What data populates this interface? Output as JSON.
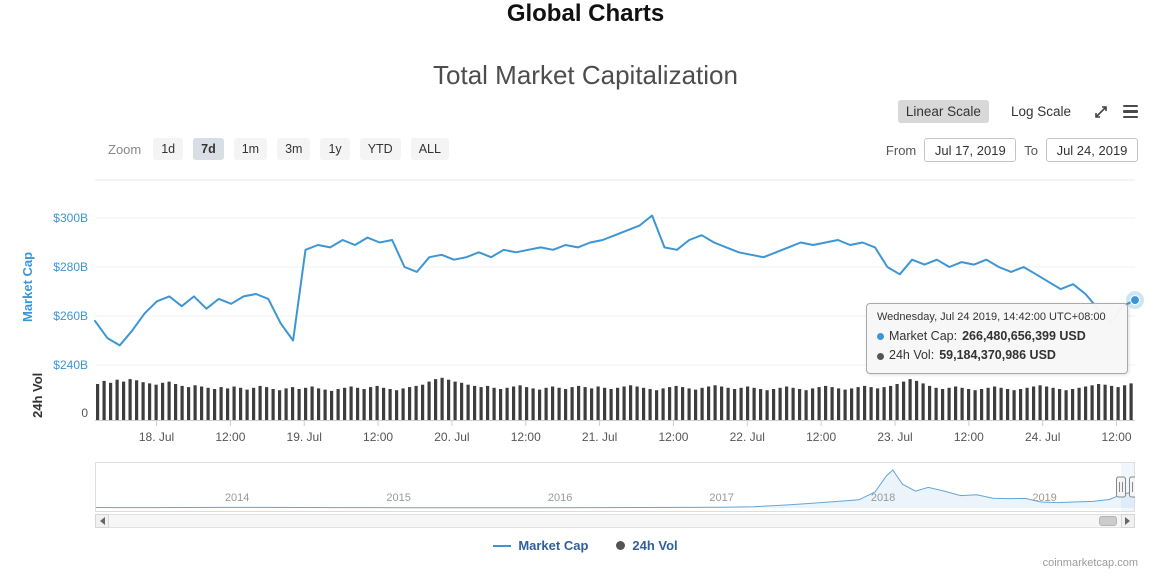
{
  "page": {
    "title": "Global Charts",
    "watermark": "coinmarketcap.com"
  },
  "chart": {
    "title": "Total Market Capitalization"
  },
  "controls": {
    "linear_scale": "Linear Scale",
    "log_scale": "Log Scale",
    "zoom_label": "Zoom",
    "zoom_buttons": [
      "1d",
      "7d",
      "1m",
      "3m",
      "1y",
      "YTD",
      "ALL"
    ],
    "zoom_selected": "7d",
    "from_label": "From",
    "from_value": "Jul 17, 2019",
    "to_label": "To",
    "to_value": "Jul 24, 2019"
  },
  "tooltip": {
    "header": "Wednesday, Jul 24 2019, 14:42:00 UTC+08:00",
    "market_cap_label": "Market Cap:",
    "market_cap_value": "266,480,656,399 USD",
    "vol_label": "24h Vol:",
    "vol_value": "59,184,370,986 USD"
  },
  "legend": {
    "market_cap": "Market Cap",
    "vol": "24h Vol"
  },
  "colors": {
    "accent": "#3d96d4",
    "volume": "#3d3d3d",
    "nav_line": "#64a5d8",
    "nav_fill": "rgba(61,150,212,0.10)",
    "axis_line": "#cccccc",
    "grid_line": "#f2f2f2"
  },
  "chart_data": {
    "type": "line",
    "title": "Total Market Capitalization",
    "y_axis_label": "Market Cap",
    "vol_axis_label": "24h Vol",
    "vol_zero_label": "0",
    "y_ticks": [
      {
        "label": "$300B",
        "value": 300
      },
      {
        "label": "$280B",
        "value": 280
      },
      {
        "label": "$260B",
        "value": 260
      },
      {
        "label": "$240B",
        "value": 240
      }
    ],
    "ylim_billions": [
      240,
      315
    ],
    "x_range": {
      "start": "Jul 17, 2019 14:00",
      "end": "Jul 24, 2019 14:42",
      "total_hours": 169
    },
    "x_tick_hours": [
      10,
      22,
      34,
      46,
      58,
      70,
      82,
      94,
      106,
      118,
      130,
      142,
      154,
      166
    ],
    "x_tick_labels": [
      "18. Jul",
      "12:00",
      "19. Jul",
      "12:00",
      "20. Jul",
      "12:00",
      "21. Jul",
      "12:00",
      "22. Jul",
      "12:00",
      "23. Jul",
      "12:00",
      "24. Jul",
      "12:00"
    ],
    "market_cap_billions": [
      258,
      251,
      248,
      254,
      261,
      266,
      268,
      264,
      268,
      263,
      267,
      265,
      268,
      269,
      267,
      257,
      250,
      287,
      289,
      288,
      291,
      289,
      292,
      290,
      291,
      280,
      278,
      284,
      285,
      283,
      284,
      286,
      284,
      287,
      286,
      287,
      288,
      287,
      289,
      288,
      290,
      291,
      293,
      295,
      297,
      301,
      288,
      287,
      291,
      293,
      290,
      288,
      286,
      285,
      284,
      286,
      288,
      290,
      289,
      290,
      291,
      289,
      290,
      288,
      280,
      277,
      283,
      281,
      283,
      280,
      282,
      281,
      283,
      280,
      278,
      280,
      277,
      274,
      271,
      273,
      269,
      263,
      257,
      264,
      266.5
    ],
    "volume_billions": [
      58,
      63,
      60,
      65,
      62,
      66,
      64,
      61,
      59,
      57,
      60,
      62,
      58,
      55,
      53,
      56,
      54,
      52,
      50,
      53,
      51,
      54,
      52,
      49,
      52,
      55,
      53,
      50,
      48,
      51,
      53,
      50,
      52,
      54,
      51,
      49,
      47,
      50,
      52,
      54,
      52,
      50,
      53,
      55,
      52,
      50,
      48,
      51,
      53,
      55,
      57,
      62,
      66,
      68,
      65,
      62,
      60,
      57,
      55,
      53,
      55,
      52,
      50,
      52,
      54,
      56,
      53,
      51,
      49,
      52,
      54,
      52,
      50,
      53,
      55,
      53,
      51,
      54,
      52,
      50,
      52,
      54,
      56,
      54,
      52,
      50,
      48,
      51,
      53,
      55,
      53,
      51,
      49,
      52,
      54,
      56,
      54,
      52,
      50,
      52,
      54,
      52,
      50,
      48,
      50,
      52,
      54,
      52,
      50,
      48,
      51,
      53,
      55,
      53,
      51,
      49,
      51,
      53,
      55,
      53,
      51,
      53,
      55,
      58,
      62,
      66,
      63,
      59,
      55,
      52,
      50,
      52,
      54,
      52,
      50,
      48,
      50,
      52,
      54,
      52,
      50,
      48,
      50,
      52,
      54,
      56,
      54,
      52,
      50,
      48,
      50,
      52,
      54,
      56,
      58,
      57,
      55,
      53,
      56,
      59
    ],
    "last_point": {
      "market_cap_usd": 266480656399,
      "vol_usd": 59184370986
    },
    "navigator": {
      "x_years": [
        2013.12,
        2013.4,
        2013.7,
        2013.95,
        2014.1,
        2014.4,
        2014.7,
        2015.0,
        2015.3,
        2015.6,
        2015.9,
        2016.2,
        2016.5,
        2016.8,
        2017.0,
        2017.2,
        2017.4,
        2017.55,
        2017.7,
        2017.85,
        2017.95,
        2018.02,
        2018.06,
        2018.12,
        2018.2,
        2018.28,
        2018.38,
        2018.48,
        2018.58,
        2018.68,
        2018.78,
        2018.88,
        2018.98,
        2019.08,
        2019.18,
        2019.3,
        2019.4,
        2019.48,
        2019.52,
        2019.56
      ],
      "values_billions": [
        11,
        9,
        10,
        14,
        13,
        10,
        8,
        6,
        5,
        5,
        7,
        9,
        12,
        14,
        17,
        28,
        65,
        100,
        140,
        180,
        350,
        700,
        830,
        520,
        370,
        450,
        370,
        270,
        290,
        215,
        205,
        210,
        130,
        118,
        130,
        145,
        185,
        300,
        330,
        266
      ],
      "year_labels": [
        "2014",
        "2015",
        "2016",
        "2017",
        "2018",
        "2019"
      ]
    }
  }
}
